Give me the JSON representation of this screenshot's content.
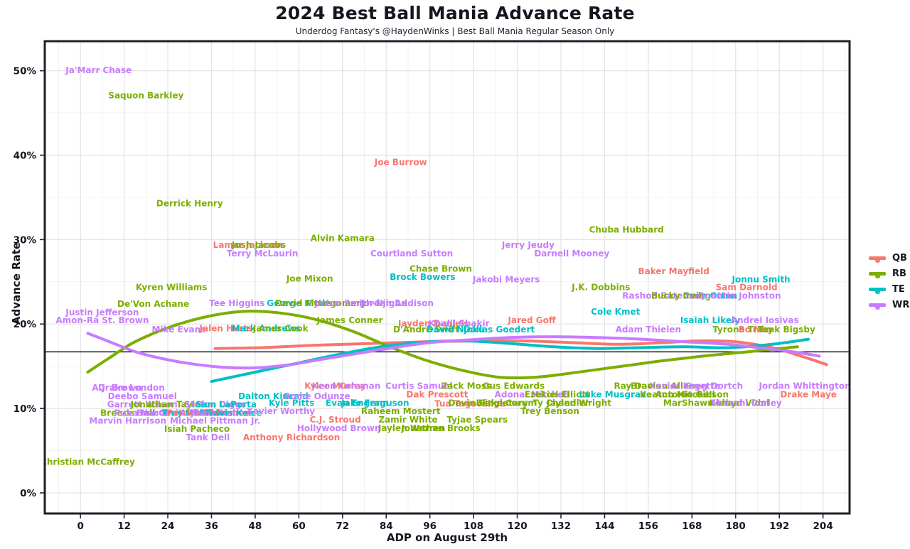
{
  "header": {
    "title": "2024 Best Ball Mania Advance Rate",
    "subtitle": "Underdog Fantasy's @HaydenWinks | Best Ball Mania Regular Season Only"
  },
  "chart_data": {
    "type": "scatter",
    "title": "2024 Best Ball Mania Advance Rate",
    "subtitle": "Underdog Fantasy's @HaydenWinks | Best Ball Mania Regular Season Only",
    "xlabel": "ADP on August 29th",
    "ylabel": "Advance Rate",
    "x_ticks": [
      0,
      12,
      24,
      36,
      48,
      60,
      72,
      84,
      96,
      108,
      120,
      132,
      144,
      156,
      168,
      180,
      192,
      204
    ],
    "x_minor_ticks": [
      -6,
      6,
      18,
      30,
      42,
      54,
      66,
      78,
      90,
      102,
      114,
      126,
      138,
      150,
      162,
      174,
      186,
      198,
      210
    ],
    "y_ticks": [
      0,
      10,
      20,
      30,
      40,
      50
    ],
    "y_minor_ticks": [
      5,
      15,
      25,
      35,
      45
    ],
    "y_tick_suffix": "%",
    "x_range": [
      -9.8,
      211.3
    ],
    "y_range": [
      -2.44,
      53.5
    ],
    "baseline_rate": 16.7,
    "grid": true,
    "legend_position": "right",
    "colors": {
      "QB": "#F8766D",
      "RB": "#7CAE00",
      "TE": "#00BFC4",
      "WR": "#C77CFF"
    },
    "grid_major_color": "#e4e4e4",
    "grid_minor_color": "#f2f2f2",
    "panel_border_color": "#1c2029",
    "baseline_color": "#000000",
    "legend": [
      {
        "label": "QB",
        "color": "#F8766D"
      },
      {
        "label": "RB",
        "color": "#7CAE00"
      },
      {
        "label": "TE",
        "color": "#00BFC4"
      },
      {
        "label": "WR",
        "color": "#C77CFF"
      }
    ],
    "players": [
      {
        "name": "Ja'Marr Chase",
        "pos": "WR",
        "adp": 5,
        "rate": 50.1
      },
      {
        "name": "Saquon Barkley",
        "pos": "RB",
        "adp": 18,
        "rate": 47.1
      },
      {
        "name": "Joe Burrow",
        "pos": "QB",
        "adp": 88,
        "rate": 39.2
      },
      {
        "name": "Derrick Henry",
        "pos": "RB",
        "adp": 30,
        "rate": 34.3
      },
      {
        "name": "Chuba Hubbard",
        "pos": "RB",
        "adp": 150,
        "rate": 31.2
      },
      {
        "name": "Alvin Kamara",
        "pos": "RB",
        "adp": 72,
        "rate": 30.2
      },
      {
        "name": "Lamar Jackson",
        "pos": "QB",
        "adp": 46,
        "rate": 29.4
      },
      {
        "name": "Josh Jacobs",
        "pos": "RB",
        "adp": 49,
        "rate": 29.4
      },
      {
        "name": "Jerry Jeudy",
        "pos": "WR",
        "adp": 123,
        "rate": 29.4
      },
      {
        "name": "Terry McLaurin",
        "pos": "WR",
        "adp": 50,
        "rate": 28.4
      },
      {
        "name": "Courtland Sutton",
        "pos": "WR",
        "adp": 91,
        "rate": 28.4
      },
      {
        "name": "Darnell Mooney",
        "pos": "WR",
        "adp": 135,
        "rate": 28.4
      },
      {
        "name": "Chase Brown",
        "pos": "RB",
        "adp": 99,
        "rate": 26.6
      },
      {
        "name": "Baker Mayfield",
        "pos": "QB",
        "adp": 163,
        "rate": 26.3
      },
      {
        "name": "Brock Bowers",
        "pos": "TE",
        "adp": 94,
        "rate": 25.6
      },
      {
        "name": "Joe Mixon",
        "pos": "RB",
        "adp": 63,
        "rate": 25.4
      },
      {
        "name": "Jakobi Meyers",
        "pos": "WR",
        "adp": 117,
        "rate": 25.3
      },
      {
        "name": "Jonnu Smith",
        "pos": "TE",
        "adp": 187,
        "rate": 25.3
      },
      {
        "name": "Kyren Williams",
        "pos": "RB",
        "adp": 25,
        "rate": 24.4
      },
      {
        "name": "J.K. Dobbins",
        "pos": "RB",
        "adp": 143,
        "rate": 24.4
      },
      {
        "name": "Sam Darnold",
        "pos": "QB",
        "adp": 183,
        "rate": 24.4
      },
      {
        "name": "Cade Otton",
        "pos": "TE",
        "adp": 173,
        "rate": 23.4
      },
      {
        "name": "Rashod Bateman",
        "pos": "WR",
        "adp": 160,
        "rate": 23.4
      },
      {
        "name": "Bucky Irving",
        "pos": "RB",
        "adp": 165,
        "rate": 23.4
      },
      {
        "name": "Quentin Johnston",
        "pos": "WR",
        "adp": 181,
        "rate": 23.4
      },
      {
        "name": "De'Von Achane",
        "pos": "RB",
        "adp": 20,
        "rate": 22.4
      },
      {
        "name": "Tee Higgins",
        "pos": "WR",
        "adp": 43,
        "rate": 22.5
      },
      {
        "name": "George Kittle",
        "pos": "TE",
        "adp": 60,
        "rate": 22.5
      },
      {
        "name": "David Montgomery",
        "pos": "RB",
        "adp": 66,
        "rate": 22.5
      },
      {
        "name": "Jaxon Smith-Njigba",
        "pos": "WR",
        "adp": 77,
        "rate": 22.5
      },
      {
        "name": "Jordan Addison",
        "pos": "WR",
        "adp": 87,
        "rate": 22.5
      },
      {
        "name": "Justin Jefferson",
        "pos": "WR",
        "adp": 6,
        "rate": 21.4
      },
      {
        "name": "Cole Kmet",
        "pos": "TE",
        "adp": 147,
        "rate": 21.5
      },
      {
        "name": "Amon-Ra St. Brown",
        "pos": "WR",
        "adp": 6,
        "rate": 20.5
      },
      {
        "name": "Jared Goff",
        "pos": "QB",
        "adp": 124,
        "rate": 20.5
      },
      {
        "name": "Isaiah Likely",
        "pos": "TE",
        "adp": 173,
        "rate": 20.5
      },
      {
        "name": "Andrei Iosivas",
        "pos": "WR",
        "adp": 188,
        "rate": 20.5
      },
      {
        "name": "James Conner",
        "pos": "RB",
        "adp": 74,
        "rate": 20.5
      },
      {
        "name": "Jayden Daniels",
        "pos": "QB",
        "adp": 97,
        "rate": 20.1
      },
      {
        "name": "Khalil Shakir",
        "pos": "WR",
        "adp": 104,
        "rate": 20.1
      },
      {
        "name": "Mike Evans",
        "pos": "WR",
        "adp": 27,
        "rate": 19.4
      },
      {
        "name": "Jalen Hurts",
        "pos": "QB",
        "adp": 40,
        "rate": 19.5
      },
      {
        "name": "Mark Andrews",
        "pos": "TE",
        "adp": 51,
        "rate": 19.5
      },
      {
        "name": "James Cook",
        "pos": "RB",
        "adp": 55,
        "rate": 19.5
      },
      {
        "name": "D'Andre Swift",
        "pos": "RB",
        "adp": 95,
        "rate": 19.4
      },
      {
        "name": "David Njoku",
        "pos": "TE",
        "adp": 103,
        "rate": 19.4
      },
      {
        "name": "Dallas Goedert",
        "pos": "TE",
        "adp": 115,
        "rate": 19.4
      },
      {
        "name": "Adam Thielen",
        "pos": "WR",
        "adp": 156,
        "rate": 19.4
      },
      {
        "name": "Tyrone Tracy",
        "pos": "RB",
        "adp": 182,
        "rate": 19.4
      },
      {
        "name": "Bo Nix",
        "pos": "QB",
        "adp": 185,
        "rate": 19.4
      },
      {
        "name": "Tank Bigsby",
        "pos": "RB",
        "adp": 194,
        "rate": 19.4
      },
      {
        "name": "A.J. Brown",
        "pos": "WR",
        "adp": 10,
        "rate": 12.5
      },
      {
        "name": "Drake London",
        "pos": "WR",
        "adp": 14,
        "rate": 12.5
      },
      {
        "name": "Deebo Samuel",
        "pos": "WR",
        "adp": 17,
        "rate": 11.5
      },
      {
        "name": "Dalton Kincaid",
        "pos": "TE",
        "adp": 53,
        "rate": 11.5
      },
      {
        "name": "Rome Odunze",
        "pos": "WR",
        "adp": 65,
        "rate": 11.5
      },
      {
        "name": "Garrett Wilson",
        "pos": "WR",
        "adp": 17,
        "rate": 10.5
      },
      {
        "name": "Jonathan Taylor",
        "pos": "RB",
        "adp": 24,
        "rate": 10.5
      },
      {
        "name": "Stefon Diggs",
        "pos": "WR",
        "adp": 37,
        "rate": 10.5
      },
      {
        "name": "Sam LaPorta",
        "pos": "TE",
        "adp": 40,
        "rate": 10.5
      },
      {
        "name": "Breece Hall",
        "pos": "RB",
        "adp": 13,
        "rate": 9.5
      },
      {
        "name": "Puka Nacua",
        "pos": "WR",
        "adp": 17,
        "rate": 9.5
      },
      {
        "name": "Brandon Aiyuk",
        "pos": "WR",
        "adp": 25,
        "rate": 9.5
      },
      {
        "name": "Chris Olave",
        "pos": "WR",
        "adp": 29,
        "rate": 9.5
      },
      {
        "name": "Trey McBride",
        "pos": "TE",
        "adp": 31,
        "rate": 9.5
      },
      {
        "name": "Patrick Mahomes",
        "pos": "QB",
        "adp": 35,
        "rate": 9.5
      },
      {
        "name": "Malik Nabers",
        "pos": "WR",
        "adp": 39,
        "rate": 9.5
      },
      {
        "name": "Travis Kelce",
        "pos": "TE",
        "adp": 42,
        "rate": 9.5
      },
      {
        "name": "Marvin Harrison",
        "pos": "WR",
        "adp": 13,
        "rate": 8.6
      },
      {
        "name": "Michael Pittman Jr.",
        "pos": "WR",
        "adp": 37,
        "rate": 8.6
      },
      {
        "name": "Isiah Pacheco",
        "pos": "RB",
        "adp": 32,
        "rate": 7.6
      },
      {
        "name": "Tank Dell",
        "pos": "WR",
        "adp": 35,
        "rate": 6.6
      },
      {
        "name": "Christian McCaffrey",
        "pos": "RB",
        "adp": 2,
        "rate": 3.7
      },
      {
        "name": "Kyler Murray",
        "pos": "QB",
        "adp": 70,
        "rate": 12.7
      },
      {
        "name": "Keon Coleman",
        "pos": "WR",
        "adp": 73,
        "rate": 12.7
      },
      {
        "name": "Curtis Samuel",
        "pos": "WR",
        "adp": 93,
        "rate": 12.7
      },
      {
        "name": "Zack Moss",
        "pos": "RB",
        "adp": 106,
        "rate": 12.7
      },
      {
        "name": "Gus Edwards",
        "pos": "RB",
        "adp": 119,
        "rate": 12.7
      },
      {
        "name": "Ray Davis",
        "pos": "RB",
        "adp": 153,
        "rate": 12.7
      },
      {
        "name": "Braelon Allen",
        "pos": "RB",
        "adp": 160,
        "rate": 12.7
      },
      {
        "name": "Xavier Legette",
        "pos": "WR",
        "adp": 166,
        "rate": 12.7
      },
      {
        "name": "Greg Dortch",
        "pos": "WR",
        "adp": 174,
        "rate": 12.7
      },
      {
        "name": "Jordan Whittington",
        "pos": "WR",
        "adp": 199,
        "rate": 12.7
      },
      {
        "name": "Dak Prescott",
        "pos": "QB",
        "adp": 98,
        "rate": 11.7
      },
      {
        "name": "Adonai Mitchell",
        "pos": "WR",
        "adp": 124,
        "rate": 11.7
      },
      {
        "name": "Ezekiel Elliott",
        "pos": "RB",
        "adp": 131,
        "rate": 11.7
      },
      {
        "name": "Luke Musgrave",
        "pos": "TE",
        "adp": 147,
        "rate": 11.7
      },
      {
        "name": "Keaton Mitchell",
        "pos": "RB",
        "adp": 164,
        "rate": 11.7
      },
      {
        "name": "Antonio Gibson",
        "pos": "RB",
        "adp": 168,
        "rate": 11.7
      },
      {
        "name": "Drake Maye",
        "pos": "QB",
        "adp": 200,
        "rate": 11.7
      },
      {
        "name": "Kyle Pitts",
        "pos": "TE",
        "adp": 58,
        "rate": 10.7
      },
      {
        "name": "Evan Engram",
        "pos": "TE",
        "adp": 76,
        "rate": 10.7
      },
      {
        "name": "Jake Ferguson",
        "pos": "TE",
        "adp": 81,
        "rate": 10.7
      },
      {
        "name": "Tua Tagovailoa",
        "pos": "QB",
        "adp": 107,
        "rate": 10.6
      },
      {
        "name": "Devin Singletary",
        "pos": "RB",
        "adp": 112,
        "rate": 10.7
      },
      {
        "name": "Blake Corum",
        "pos": "RB",
        "adp": 117,
        "rate": 10.7
      },
      {
        "name": "Ty Chandler",
        "pos": "RB",
        "adp": 132,
        "rate": 10.7
      },
      {
        "name": "Jaylen Wright",
        "pos": "RB",
        "adp": 137,
        "rate": 10.7
      },
      {
        "name": "MarShawn Lloyd",
        "pos": "RB",
        "adp": 171,
        "rate": 10.7
      },
      {
        "name": "Kimani Vidal",
        "pos": "RB",
        "adp": 181,
        "rate": 10.7
      },
      {
        "name": "Malachi Corley",
        "pos": "WR",
        "adp": 183,
        "rate": 10.7
      },
      {
        "name": "Xavier Worthy",
        "pos": "WR",
        "adp": 55,
        "rate": 9.7
      },
      {
        "name": "Raheem Mostert",
        "pos": "RB",
        "adp": 88,
        "rate": 9.7
      },
      {
        "name": "Trey Benson",
        "pos": "RB",
        "adp": 129,
        "rate": 9.7
      },
      {
        "name": "C.J. Stroud",
        "pos": "QB",
        "adp": 70,
        "rate": 8.7
      },
      {
        "name": "Zamir White",
        "pos": "RB",
        "adp": 90,
        "rate": 8.7
      },
      {
        "name": "Tyjae Spears",
        "pos": "RB",
        "adp": 109,
        "rate": 8.7
      },
      {
        "name": "Hollywood Brown",
        "pos": "WR",
        "adp": 71,
        "rate": 7.7
      },
      {
        "name": "Jaylen Warren",
        "pos": "RB",
        "adp": 91,
        "rate": 7.7
      },
      {
        "name": "Jonathan Brooks",
        "pos": "RB",
        "adp": 99,
        "rate": 7.7
      },
      {
        "name": "Anthony Richardson",
        "pos": "QB",
        "adp": 58,
        "rate": 6.6
      }
    ],
    "trend_lines": {
      "QB": [
        [
          37,
          17.1
        ],
        [
          50,
          17.2
        ],
        [
          65,
          17.5
        ],
        [
          80,
          17.7
        ],
        [
          95,
          17.9
        ],
        [
          110,
          18.0
        ],
        [
          122,
          18.0
        ],
        [
          135,
          17.8
        ],
        [
          148,
          17.6
        ],
        [
          160,
          17.8
        ],
        [
          170,
          18.0
        ],
        [
          180,
          17.9
        ],
        [
          190,
          17.2
        ],
        [
          198,
          16.2
        ],
        [
          205,
          15.2
        ]
      ],
      "RB": [
        [
          2,
          14.3
        ],
        [
          8,
          16.0
        ],
        [
          15,
          17.9
        ],
        [
          25,
          19.7
        ],
        [
          35,
          20.9
        ],
        [
          45,
          21.5
        ],
        [
          55,
          21.3
        ],
        [
          65,
          20.5
        ],
        [
          75,
          19.1
        ],
        [
          85,
          17.3
        ],
        [
          95,
          15.7
        ],
        [
          105,
          14.5
        ],
        [
          115,
          13.7
        ],
        [
          125,
          13.7
        ],
        [
          135,
          14.2
        ],
        [
          147,
          14.9
        ],
        [
          159,
          15.6
        ],
        [
          171,
          16.2
        ],
        [
          183,
          16.7
        ],
        [
          197,
          17.3
        ]
      ],
      "TE": [
        [
          36,
          13.2
        ],
        [
          48,
          14.3
        ],
        [
          60,
          15.4
        ],
        [
          72,
          16.5
        ],
        [
          84,
          17.4
        ],
        [
          96,
          17.9
        ],
        [
          106,
          18.0
        ],
        [
          118,
          17.7
        ],
        [
          130,
          17.3
        ],
        [
          142,
          17.1
        ],
        [
          154,
          17.2
        ],
        [
          166,
          17.3
        ],
        [
          178,
          17.2
        ],
        [
          190,
          17.6
        ],
        [
          200,
          18.2
        ]
      ],
      "WR": [
        [
          2,
          18.9
        ],
        [
          8,
          17.9
        ],
        [
          16,
          16.6
        ],
        [
          26,
          15.6
        ],
        [
          36,
          15.0
        ],
        [
          46,
          14.8
        ],
        [
          56,
          15.1
        ],
        [
          66,
          15.8
        ],
        [
          76,
          16.5
        ],
        [
          86,
          17.2
        ],
        [
          96,
          17.8
        ],
        [
          106,
          18.1
        ],
        [
          118,
          18.4
        ],
        [
          130,
          18.5
        ],
        [
          142,
          18.4
        ],
        [
          154,
          18.2
        ],
        [
          166,
          17.9
        ],
        [
          178,
          17.6
        ],
        [
          188,
          17.1
        ],
        [
          196,
          16.7
        ],
        [
          203,
          16.2
        ]
      ]
    }
  }
}
